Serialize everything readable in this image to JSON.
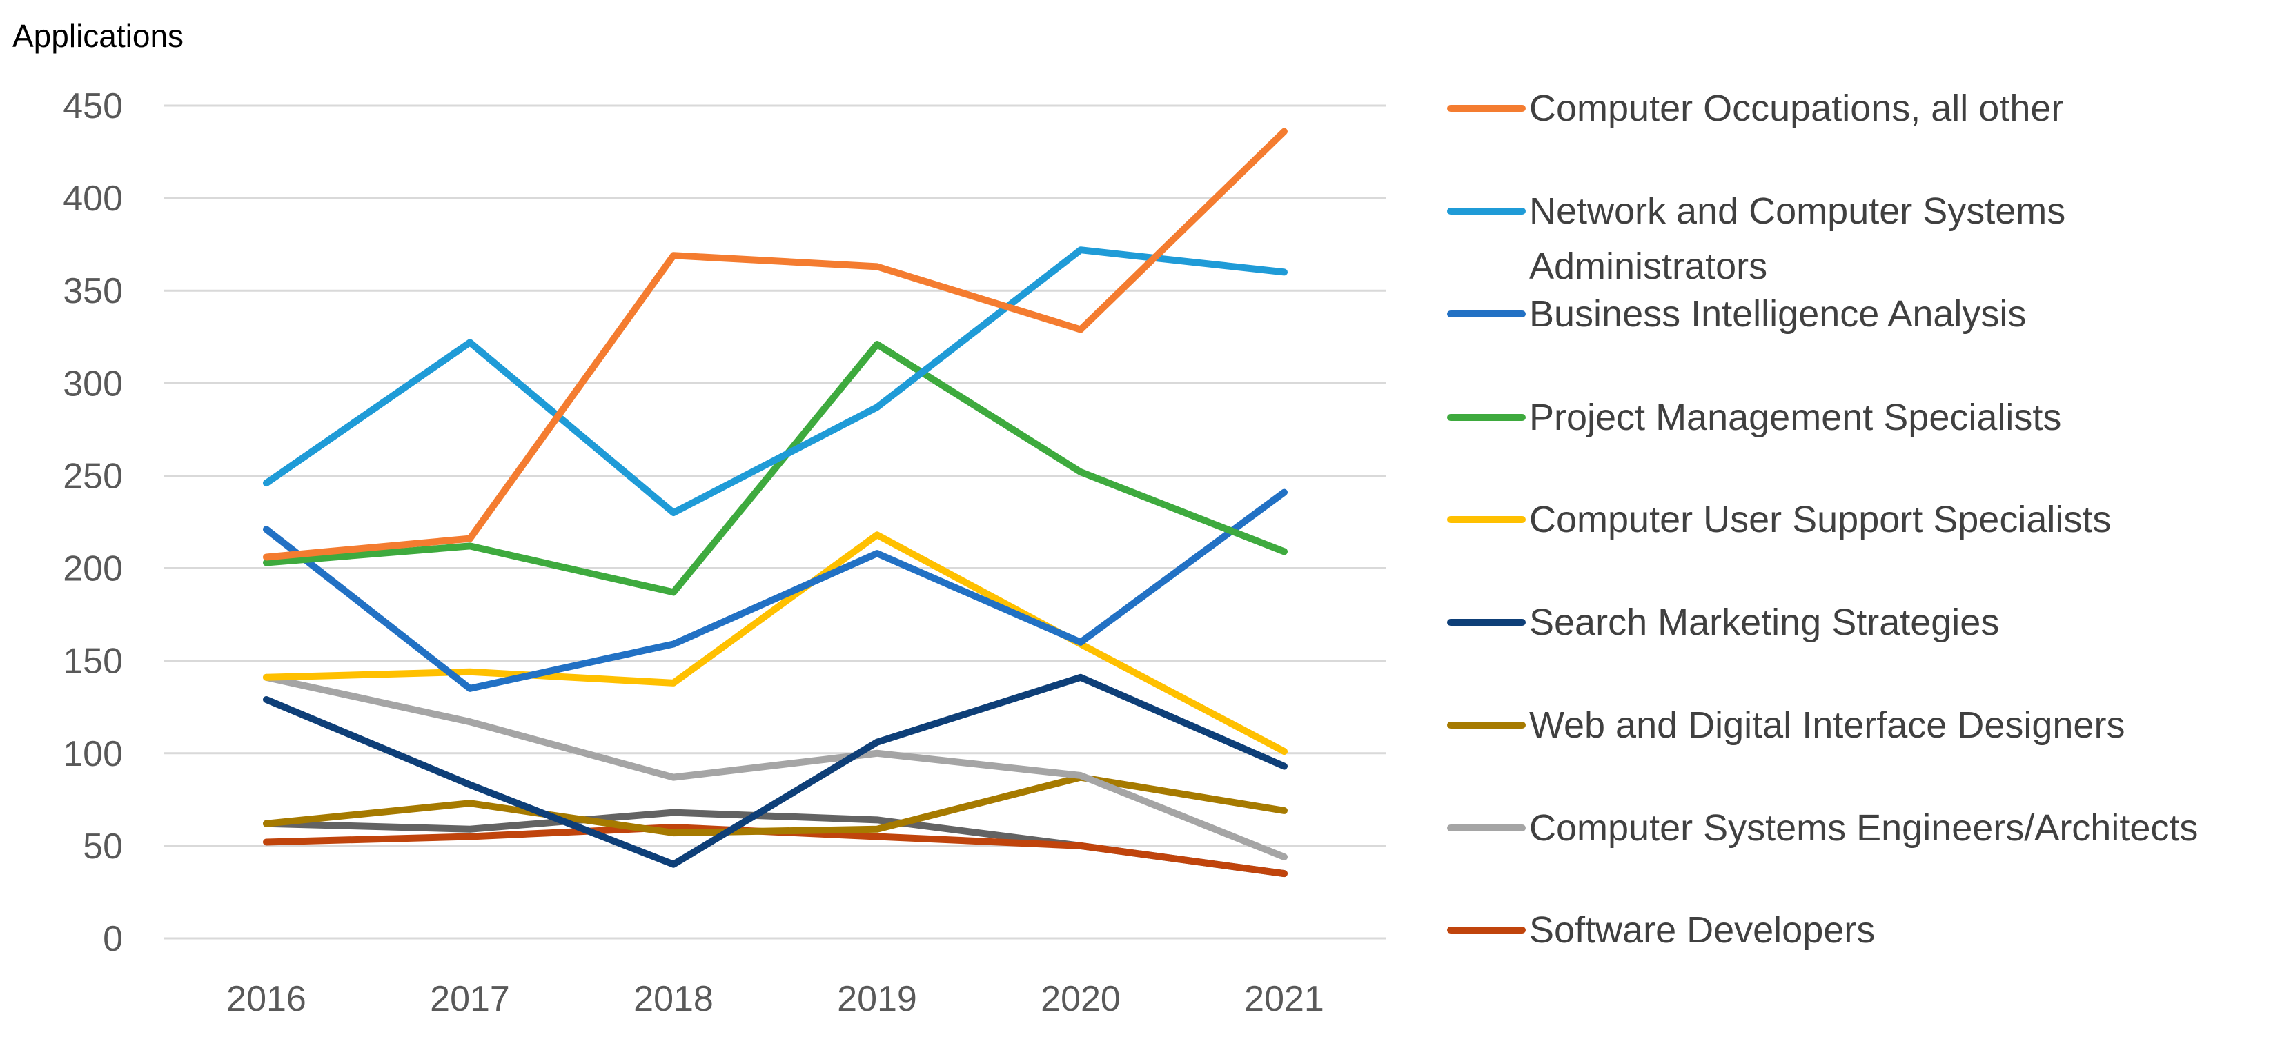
{
  "chart_data": {
    "type": "line",
    "title": "",
    "xlabel": "",
    "ylabel": "Applications",
    "ylim": [
      0,
      450
    ],
    "yticks": [
      0,
      50,
      100,
      150,
      200,
      250,
      300,
      350,
      400,
      450
    ],
    "categories": [
      "2016",
      "2017",
      "2018",
      "2019",
      "2020",
      "2021"
    ],
    "grid": true,
    "legend_position": "right",
    "series": [
      {
        "name": "Computer Occupations, all other",
        "color": "#F47C30",
        "values": [
          206,
          216,
          369,
          363,
          329,
          436
        ]
      },
      {
        "name": "Network and Computer Systems Administrators",
        "color": "#1F9BD7",
        "values": [
          246,
          322,
          230,
          287,
          372,
          360
        ]
      },
      {
        "name": "Business Intelligence Analysis",
        "color": "#2271C4",
        "values": [
          221,
          135,
          159,
          208,
          160,
          241
        ]
      },
      {
        "name": "Project Management Specialists",
        "color": "#3EAA3E",
        "values": [
          203,
          212,
          187,
          321,
          252,
          209
        ]
      },
      {
        "name": "Computer User Support Specialists",
        "color": "#FFC000",
        "values": [
          141,
          144,
          138,
          218,
          159,
          101
        ]
      },
      {
        "name": "Search Marketing Strategies",
        "color": "#0E3F78",
        "values": [
          129,
          83,
          40,
          106,
          141,
          93
        ]
      },
      {
        "name": "Web and Digital Interface Designers",
        "color": "#A67A00",
        "values": [
          62,
          73,
          57,
          59,
          87,
          69
        ]
      },
      {
        "name": "Computer Systems Engineers/Architects",
        "color": "#A5A5A5",
        "values": [
          141,
          117,
          87,
          100,
          88,
          44
        ]
      },
      {
        "name": "Software Developers",
        "color": "#C0440C",
        "values": [
          52,
          55,
          60,
          55,
          50,
          35
        ]
      },
      {
        "name": "",
        "color": "#636363",
        "values": [
          62,
          59,
          68,
          64,
          50,
          35
        ]
      }
    ]
  }
}
